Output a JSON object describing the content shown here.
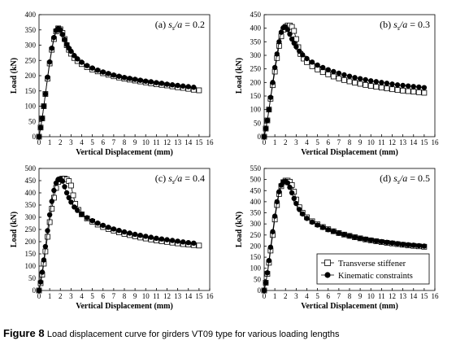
{
  "figure": {
    "label": "Figure 8",
    "caption": "Load displacement curve for girders VT09 type for various loading lengths"
  },
  "legend": {
    "placement": "bottom-right of panel (d)",
    "entries": [
      {
        "label": "Transverse stiffener",
        "marker": "open-square",
        "color": "#000000"
      },
      {
        "label": "Kinematic constraints",
        "marker": "filled-circle",
        "color": "#000000"
      }
    ]
  },
  "chart_data": [
    {
      "type": "line",
      "panel_label": "(a)",
      "ratio_symbol": "s_s/a",
      "ratio_value": "0.2",
      "xlabel": "Vertical Displacement (mm)",
      "ylabel": "Load (kN)",
      "xlim": [
        0,
        16
      ],
      "ylim": [
        0,
        400
      ],
      "xticks": [
        0,
        1,
        2,
        3,
        4,
        5,
        6,
        7,
        8,
        9,
        10,
        11,
        12,
        13,
        14,
        15,
        16
      ],
      "yticks": [
        0,
        50,
        100,
        150,
        200,
        250,
        300,
        350,
        400
      ],
      "grid": false,
      "series": [
        {
          "name": "Transverse stiffener",
          "marker": "open-square",
          "x": [
            0,
            0.15,
            0.3,
            0.45,
            0.6,
            0.8,
            1.0,
            1.2,
            1.4,
            1.6,
            1.8,
            2.0,
            2.2,
            2.4,
            2.6,
            2.8,
            3.0,
            3.3,
            3.6,
            4.0,
            4.5,
            5.0,
            5.5,
            6.0,
            6.5,
            7.0,
            7.5,
            8.0,
            8.5,
            9.0,
            9.5,
            10.0,
            10.5,
            11.0,
            11.5,
            12.0,
            12.5,
            13.0,
            13.5,
            14.0,
            14.5,
            15.0
          ],
          "y": [
            0,
            30,
            60,
            100,
            140,
            190,
            240,
            285,
            320,
            345,
            355,
            352,
            340,
            320,
            300,
            285,
            272,
            258,
            248,
            238,
            228,
            220,
            214,
            208,
            203,
            198,
            194,
            190,
            187,
            184,
            181,
            178,
            175,
            172,
            170,
            168,
            165,
            162,
            160,
            157,
            154,
            152
          ]
        },
        {
          "name": "Kinematic constraints",
          "marker": "filled-circle",
          "x": [
            0,
            0.15,
            0.3,
            0.45,
            0.6,
            0.8,
            1.0,
            1.2,
            1.4,
            1.6,
            1.8,
            2.0,
            2.2,
            2.4,
            2.6,
            2.8,
            3.0,
            3.3,
            3.6,
            4.0,
            4.5,
            5.0,
            5.5,
            6.0,
            6.5,
            7.0,
            7.5,
            8.0,
            8.5,
            9.0,
            9.5,
            10.0,
            10.5,
            11.0,
            11.5,
            12.0,
            12.5,
            13.0,
            13.5,
            14.0,
            14.5
          ],
          "y": [
            0,
            30,
            60,
            100,
            140,
            195,
            245,
            290,
            325,
            348,
            355,
            350,
            335,
            318,
            302,
            290,
            280,
            266,
            255,
            244,
            233,
            225,
            218,
            212,
            207,
            202,
            198,
            194,
            191,
            188,
            185,
            182,
            180,
            177,
            175,
            172,
            170,
            168,
            166,
            164,
            162
          ]
        }
      ]
    },
    {
      "type": "line",
      "panel_label": "(b)",
      "ratio_symbol": "s_s/a",
      "ratio_value": "0.3",
      "xlabel": "Vertical Displacement (mm)",
      "ylabel": "Load (kN)",
      "xlim": [
        0,
        16
      ],
      "ylim": [
        0,
        450
      ],
      "xticks": [
        0,
        1,
        2,
        3,
        4,
        5,
        6,
        7,
        8,
        9,
        10,
        11,
        12,
        13,
        14,
        15,
        16
      ],
      "yticks": [
        0,
        50,
        100,
        150,
        200,
        250,
        300,
        350,
        400,
        450
      ],
      "grid": false,
      "series": [
        {
          "name": "Transverse stiffener",
          "marker": "open-square",
          "x": [
            0,
            0.15,
            0.3,
            0.45,
            0.6,
            0.8,
            1.0,
            1.2,
            1.4,
            1.6,
            1.8,
            2.0,
            2.2,
            2.4,
            2.6,
            2.8,
            3.0,
            3.2,
            3.4,
            3.7,
            4.0,
            4.5,
            5.0,
            5.5,
            6.0,
            6.5,
            7.0,
            7.5,
            8.0,
            8.5,
            9.0,
            9.5,
            10.0,
            10.5,
            11.0,
            11.5,
            12.0,
            12.5,
            13.0,
            13.5,
            14.0,
            14.5,
            15.0
          ],
          "y": [
            0,
            30,
            60,
            100,
            140,
            190,
            240,
            290,
            335,
            370,
            395,
            405,
            410,
            410,
            405,
            390,
            360,
            330,
            305,
            288,
            275,
            260,
            248,
            238,
            230,
            222,
            215,
            209,
            204,
            199,
            195,
            191,
            187,
            184,
            181,
            178,
            175,
            172,
            170,
            168,
            166,
            164,
            162
          ]
        },
        {
          "name": "Kinematic constraints",
          "marker": "filled-circle",
          "x": [
            0,
            0.15,
            0.3,
            0.45,
            0.6,
            0.8,
            1.0,
            1.2,
            1.4,
            1.6,
            1.8,
            2.0,
            2.2,
            2.4,
            2.6,
            2.8,
            3.0,
            3.3,
            3.6,
            4.0,
            4.5,
            5.0,
            5.5,
            6.0,
            6.5,
            7.0,
            7.5,
            8.0,
            8.5,
            9.0,
            9.5,
            10.0,
            10.5,
            11.0,
            11.5,
            12.0,
            12.5,
            13.0,
            13.5,
            14.0,
            14.5,
            15.0
          ],
          "y": [
            0,
            30,
            60,
            100,
            145,
            200,
            255,
            305,
            350,
            385,
            402,
            405,
            395,
            378,
            360,
            345,
            332,
            315,
            302,
            288,
            275,
            264,
            255,
            247,
            240,
            234,
            228,
            223,
            218,
            214,
            210,
            206,
            203,
            200,
            197,
            194,
            191,
            189,
            187,
            185,
            183,
            181
          ]
        }
      ]
    },
    {
      "type": "line",
      "panel_label": "(c)",
      "ratio_symbol": "s_s/a",
      "ratio_value": "0.4",
      "xlabel": "Vertical Displacement (mm)",
      "ylabel": "Load (kN)",
      "xlim": [
        0,
        16
      ],
      "ylim": [
        0,
        500
      ],
      "xticks": [
        0,
        1,
        2,
        3,
        4,
        5,
        6,
        7,
        8,
        9,
        10,
        11,
        12,
        13,
        14,
        15,
        16
      ],
      "yticks": [
        0,
        50,
        100,
        150,
        200,
        250,
        300,
        350,
        400,
        450,
        500
      ],
      "grid": false,
      "series": [
        {
          "name": "Transverse stiffener",
          "marker": "open-square",
          "x": [
            0,
            0.15,
            0.3,
            0.45,
            0.6,
            0.8,
            1.0,
            1.2,
            1.4,
            1.6,
            1.8,
            2.0,
            2.2,
            2.4,
            2.6,
            2.8,
            3.0,
            3.2,
            3.4,
            3.7,
            4.0,
            4.5,
            5.0,
            5.5,
            6.0,
            6.5,
            7.0,
            7.5,
            8.0,
            8.5,
            9.0,
            9.5,
            10.0,
            10.5,
            11.0,
            11.5,
            12.0,
            12.5,
            13.0,
            13.5,
            14.0,
            14.5,
            15.0
          ],
          "y": [
            0,
            30,
            65,
            110,
            160,
            220,
            280,
            335,
            380,
            420,
            445,
            455,
            458,
            458,
            455,
            448,
            430,
            390,
            355,
            330,
            312,
            295,
            282,
            270,
            260,
            252,
            245,
            238,
            232,
            227,
            222,
            217,
            213,
            209,
            205,
            202,
            199,
            196,
            193,
            190,
            188,
            186,
            184
          ]
        },
        {
          "name": "Kinematic constraints",
          "marker": "filled-circle",
          "x": [
            0,
            0.15,
            0.3,
            0.45,
            0.6,
            0.8,
            1.0,
            1.2,
            1.4,
            1.6,
            1.8,
            2.0,
            2.2,
            2.4,
            2.6,
            2.8,
            3.0,
            3.3,
            3.6,
            4.0,
            4.5,
            5.0,
            5.5,
            6.0,
            6.5,
            7.0,
            7.5,
            8.0,
            8.5,
            9.0,
            9.5,
            10.0,
            10.5,
            11.0,
            11.5,
            12.0,
            12.5,
            13.0,
            13.5,
            14.0,
            14.5
          ],
          "y": [
            0,
            35,
            75,
            125,
            180,
            245,
            310,
            365,
            410,
            440,
            455,
            458,
            448,
            425,
            400,
            380,
            362,
            342,
            328,
            312,
            298,
            286,
            276,
            267,
            259,
            252,
            246,
            240,
            235,
            230,
            226,
            222,
            218,
            214,
            211,
            208,
            205,
            202,
            199,
            196,
            194
          ]
        }
      ]
    },
    {
      "type": "line",
      "panel_label": "(d)",
      "ratio_symbol": "s_s/a",
      "ratio_value": "0.5",
      "xlabel": "Vertical Displacement (mm)",
      "ylabel": "Load (kN)",
      "xlim": [
        0,
        16
      ],
      "ylim": [
        0,
        550
      ],
      "xticks": [
        0,
        1,
        2,
        3,
        4,
        5,
        6,
        7,
        8,
        9,
        10,
        11,
        12,
        13,
        14,
        15,
        16
      ],
      "yticks": [
        0,
        50,
        100,
        150,
        200,
        250,
        300,
        350,
        400,
        450,
        500,
        550
      ],
      "grid": false,
      "series": [
        {
          "name": "Transverse stiffener",
          "marker": "open-square",
          "x": [
            0,
            0.15,
            0.3,
            0.45,
            0.6,
            0.8,
            1.0,
            1.2,
            1.4,
            1.6,
            1.8,
            2.0,
            2.2,
            2.4,
            2.6,
            2.8,
            3.0,
            3.3,
            3.6,
            4.0,
            4.5,
            5.0,
            5.5,
            6.0,
            6.5,
            7.0,
            7.5,
            8.0,
            8.5,
            9.0,
            9.5,
            10.0,
            10.5,
            11.0,
            11.5,
            12.0,
            12.5,
            13.0,
            13.5,
            14.0,
            14.5,
            15.0
          ],
          "y": [
            0,
            35,
            75,
            125,
            180,
            250,
            320,
            385,
            435,
            470,
            488,
            495,
            495,
            490,
            475,
            445,
            410,
            375,
            350,
            330,
            312,
            298,
            286,
            276,
            267,
            259,
            252,
            246,
            240,
            235,
            230,
            226,
            222,
            218,
            215,
            212,
            209,
            206,
            203,
            201,
            199,
            197
          ]
        },
        {
          "name": "Kinematic constraints",
          "marker": "filled-circle",
          "x": [
            0,
            0.15,
            0.3,
            0.45,
            0.6,
            0.8,
            1.0,
            1.2,
            1.4,
            1.6,
            1.8,
            2.0,
            2.2,
            2.4,
            2.6,
            2.8,
            3.0,
            3.3,
            3.6,
            4.0,
            4.5,
            5.0,
            5.5,
            6.0,
            6.5,
            7.0,
            7.5,
            8.0,
            8.5,
            9.0,
            9.5,
            10.0,
            10.5,
            11.0,
            11.5,
            12.0,
            12.5,
            13.0,
            13.5,
            14.0,
            14.5,
            15.0
          ],
          "y": [
            0,
            35,
            80,
            135,
            195,
            265,
            335,
            400,
            445,
            475,
            490,
            492,
            485,
            465,
            440,
            415,
            392,
            365,
            345,
            325,
            308,
            295,
            284,
            274,
            266,
            258,
            252,
            246,
            240,
            235,
            231,
            227,
            223,
            220,
            217,
            214,
            211,
            208,
            206,
            204,
            202,
            200
          ]
        }
      ]
    }
  ]
}
